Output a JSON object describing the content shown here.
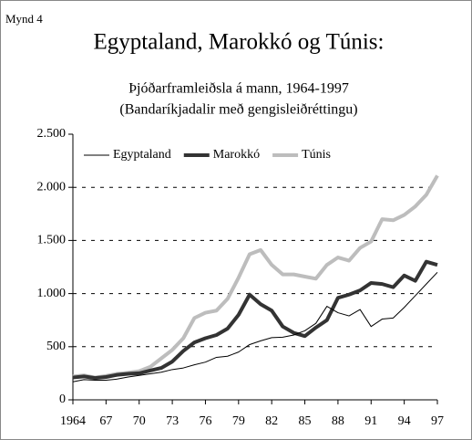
{
  "chart_data": {
    "type": "line",
    "label": "Mynd 4",
    "title": "Egyptaland, Marokkó og Túnis:",
    "subtitle": [
      "Þjóðarframleiðsla á mann, 1964-1997",
      "(Bandaríkjadalir með gengisleiðréttingu)"
    ],
    "x": [
      1964,
      1965,
      1966,
      1967,
      1968,
      1969,
      1970,
      1971,
      1972,
      1973,
      1974,
      1975,
      1976,
      1977,
      1978,
      1979,
      1980,
      1981,
      1982,
      1983,
      1984,
      1985,
      1986,
      1987,
      1988,
      1989,
      1990,
      1991,
      1992,
      1993,
      1994,
      1995,
      1996,
      1997
    ],
    "series": [
      {
        "name": "Egyptaland",
        "color": "#000000",
        "width": 1,
        "values": [
          170,
          190,
          185,
          185,
          195,
          215,
          230,
          245,
          260,
          285,
          300,
          330,
          355,
          400,
          410,
          450,
          520,
          555,
          585,
          590,
          610,
          650,
          720,
          880,
          820,
          790,
          850,
          690,
          760,
          770,
          870,
          980,
          1090,
          1200
        ]
      },
      {
        "name": "Marokkó",
        "color": "#333333",
        "width": 4,
        "values": [
          210,
          220,
          205,
          215,
          235,
          245,
          250,
          275,
          300,
          360,
          460,
          540,
          580,
          610,
          670,
          800,
          990,
          900,
          840,
          690,
          630,
          600,
          680,
          750,
          960,
          990,
          1030,
          1100,
          1090,
          1060,
          1170,
          1120,
          1300,
          1270
        ]
      },
      {
        "name": "Túnis",
        "color": "#bdbdbd",
        "width": 4,
        "values": [
          220,
          230,
          210,
          225,
          245,
          255,
          270,
          310,
          390,
          470,
          580,
          770,
          820,
          840,
          950,
          1150,
          1370,
          1410,
          1270,
          1180,
          1180,
          1160,
          1140,
          1270,
          1340,
          1310,
          1430,
          1490,
          1700,
          1690,
          1740,
          1820,
          1930,
          2110
        ]
      }
    ],
    "xlim": [
      1964,
      1997
    ],
    "xticks": [
      1964,
      {
        "value": 1967,
        "label": "67"
      },
      {
        "value": 1970,
        "label": "70"
      },
      {
        "value": 1973,
        "label": "73"
      },
      {
        "value": 1976,
        "label": "76"
      },
      {
        "value": 1979,
        "label": "79"
      },
      {
        "value": 1982,
        "label": "82"
      },
      {
        "value": 1985,
        "label": "85"
      },
      {
        "value": 1988,
        "label": "88"
      },
      {
        "value": 1991,
        "label": "91"
      },
      {
        "value": 1994,
        "label": "94"
      },
      {
        "value": 1997,
        "label": "97"
      }
    ],
    "ylim": [
      0,
      2500
    ],
    "yticks": [
      0,
      500,
      {
        "value": 1000,
        "label": "1.000"
      },
      {
        "value": 1500,
        "label": "1.500"
      },
      {
        "value": 2000,
        "label": "2.000"
      },
      {
        "value": 2500,
        "label": "2.500"
      }
    ],
    "grid": true,
    "legend": "top"
  }
}
